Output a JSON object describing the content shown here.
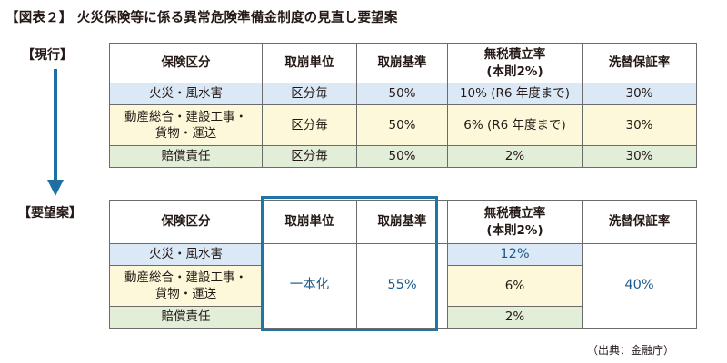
{
  "title": "【図表２】 火災保険等に係る異常危険準備金制度の見直し要望案",
  "labels": {
    "current": "【現行】",
    "proposal": "【要望案】"
  },
  "headers": {
    "category": "保険区分",
    "unit": "取崩単位",
    "standard": "取崩基準",
    "tax_free_rate_line1": "無税積立率",
    "tax_free_rate_line2": "(本則2%)",
    "guarantee": "洗替保証率"
  },
  "current": {
    "fire": {
      "category": "火災・風水害",
      "unit": "区分毎",
      "standard": "50%",
      "rate": "10% (R6 年度まで)",
      "guarantee": "30%"
    },
    "motor": {
      "category_line1": "動産総合・建設工事・",
      "category_line2": "貨物・運送",
      "unit": "区分毎",
      "standard": "50%",
      "rate": "6% (R6 年度まで)",
      "guarantee": "30%"
    },
    "liability": {
      "category": "賠償責任",
      "unit": "区分毎",
      "standard": "50%",
      "rate": "2%",
      "guarantee": "30%"
    }
  },
  "proposal": {
    "fire": {
      "category": "火災・風水害",
      "rate": "12%"
    },
    "motor": {
      "category_line1": "動産総合・建設工事・",
      "category_line2": "貨物・運送",
      "rate": "6%"
    },
    "liability": {
      "category": "賠償責任",
      "rate": "2%"
    },
    "unit": "一本化",
    "standard": "55%",
    "guarantee": "40%"
  },
  "source": "（出典：金融庁）",
  "colors": {
    "fire_row": "#dbe8f6",
    "motor_row": "#fdf8d9",
    "liability_row": "#e3eed9",
    "accent": "#1f76a6",
    "arrow": "#1f6fa3"
  }
}
